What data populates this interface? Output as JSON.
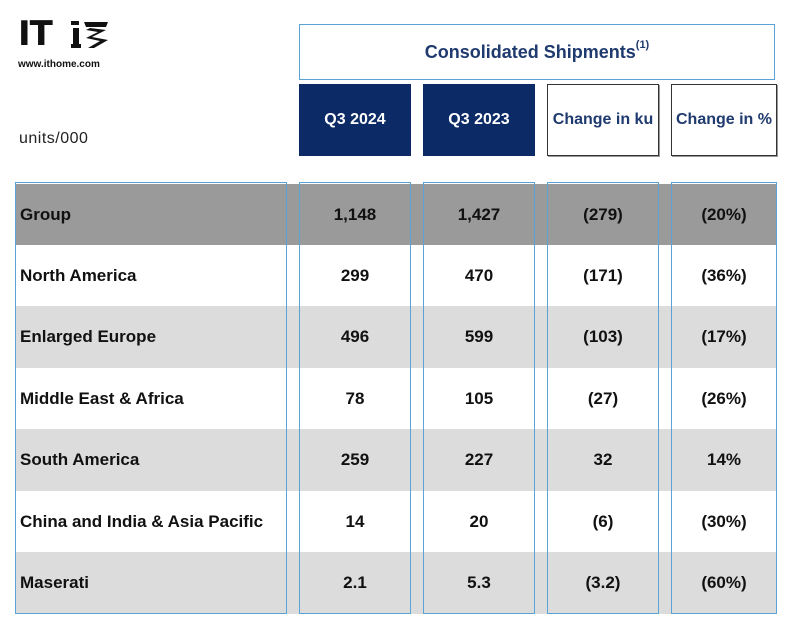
{
  "logo": {
    "text": "IT",
    "url": "www.ithome.com"
  },
  "units_label": "units/000",
  "header": {
    "title": "Consolidated Shipments",
    "footnote": "(1)"
  },
  "columns": [
    "Q3 2024",
    "Q3 2023",
    "Change in ku",
    "Change in %"
  ],
  "rows": [
    {
      "region": "Group",
      "q3_2024": "1,148",
      "q3_2023": "1,427",
      "change_ku": "(279)",
      "change_pct": "(20%)"
    },
    {
      "region": "North America",
      "q3_2024": "299",
      "q3_2023": "470",
      "change_ku": "(171)",
      "change_pct": "(36%)"
    },
    {
      "region": "Enlarged Europe",
      "q3_2024": "496",
      "q3_2023": "599",
      "change_ku": "(103)",
      "change_pct": "(17%)"
    },
    {
      "region": "Middle East & Africa",
      "q3_2024": "78",
      "q3_2023": "105",
      "change_ku": "(27)",
      "change_pct": "(26%)"
    },
    {
      "region": "South America",
      "q3_2024": "259",
      "q3_2023": "227",
      "change_ku": "32",
      "change_pct": "14%"
    },
    {
      "region": "China and India & Asia Pacific",
      "q3_2024": "14",
      "q3_2023": "20",
      "change_ku": "(6)",
      "change_pct": "(30%)"
    },
    {
      "region": "Maserati",
      "q3_2024": "2.1",
      "q3_2023": "5.3",
      "change_ku": "(3.2)",
      "change_pct": "(60%)"
    }
  ],
  "colors": {
    "navy": "#0b2a66",
    "title_blue": "#1f3a6e",
    "frame_blue": "#5aa3d6",
    "group_gray": "#9a9a9a",
    "row_gray": "#dcdcdc"
  }
}
